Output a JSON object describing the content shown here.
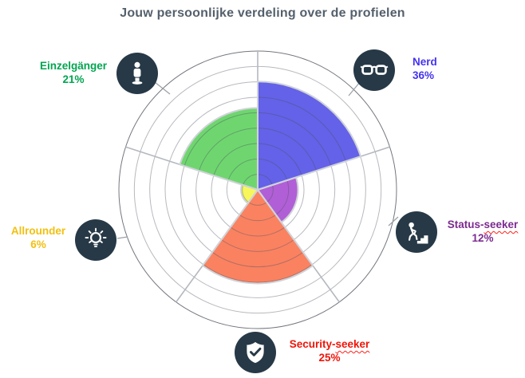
{
  "title": "Jouw persoonlijke verdeling over de profielen",
  "chart_data": {
    "type": "polar-area",
    "title": "Jouw persoonlijke verdeling over de profielen",
    "unit": "percent",
    "categories": [
      "Nerd",
      "Status-seeker",
      "Security-seeker",
      "Allrounder",
      "Einzelgänger"
    ],
    "values": [
      36,
      12,
      25,
      6,
      21
    ],
    "colors": [
      "#6462e8",
      "#b15fd6",
      "#fa8261",
      "#f7f75c",
      "#6fd66f"
    ],
    "start_angle_deg": 90,
    "sector_angle_deg": 72,
    "clockwise": true,
    "gridline_count": 9,
    "radius_fractions": [
      0.78,
      0.29,
      0.675,
      0.12,
      0.59
    ],
    "legend_position": "around-chart",
    "grid": true
  },
  "profiles": [
    {
      "name_pre": "Nerd",
      "name_wavy": "",
      "pct": "36%",
      "label_color": "#4433f0",
      "icon": "glasses-icon"
    },
    {
      "name_pre": "Status-",
      "name_wavy": "seeker",
      "pct": "12%",
      "label_color": "#7c2b90",
      "icon": "person-climbing-stairs-icon"
    },
    {
      "name_pre": "Security-",
      "name_wavy": "seeker",
      "pct": "25%",
      "label_color": "#ee1509",
      "icon": "shield-check-icon"
    },
    {
      "name_pre": "Allrounder",
      "name_wavy": "",
      "pct": "6%",
      "label_color": "#f2c011",
      "icon": "lightbulb-icon"
    },
    {
      "name_pre": "Einzelgänger",
      "name_wavy": "",
      "pct": "21%",
      "label_color": "#00a54f",
      "icon": "standing-person-icon"
    }
  ],
  "icon_bg": "#273947"
}
